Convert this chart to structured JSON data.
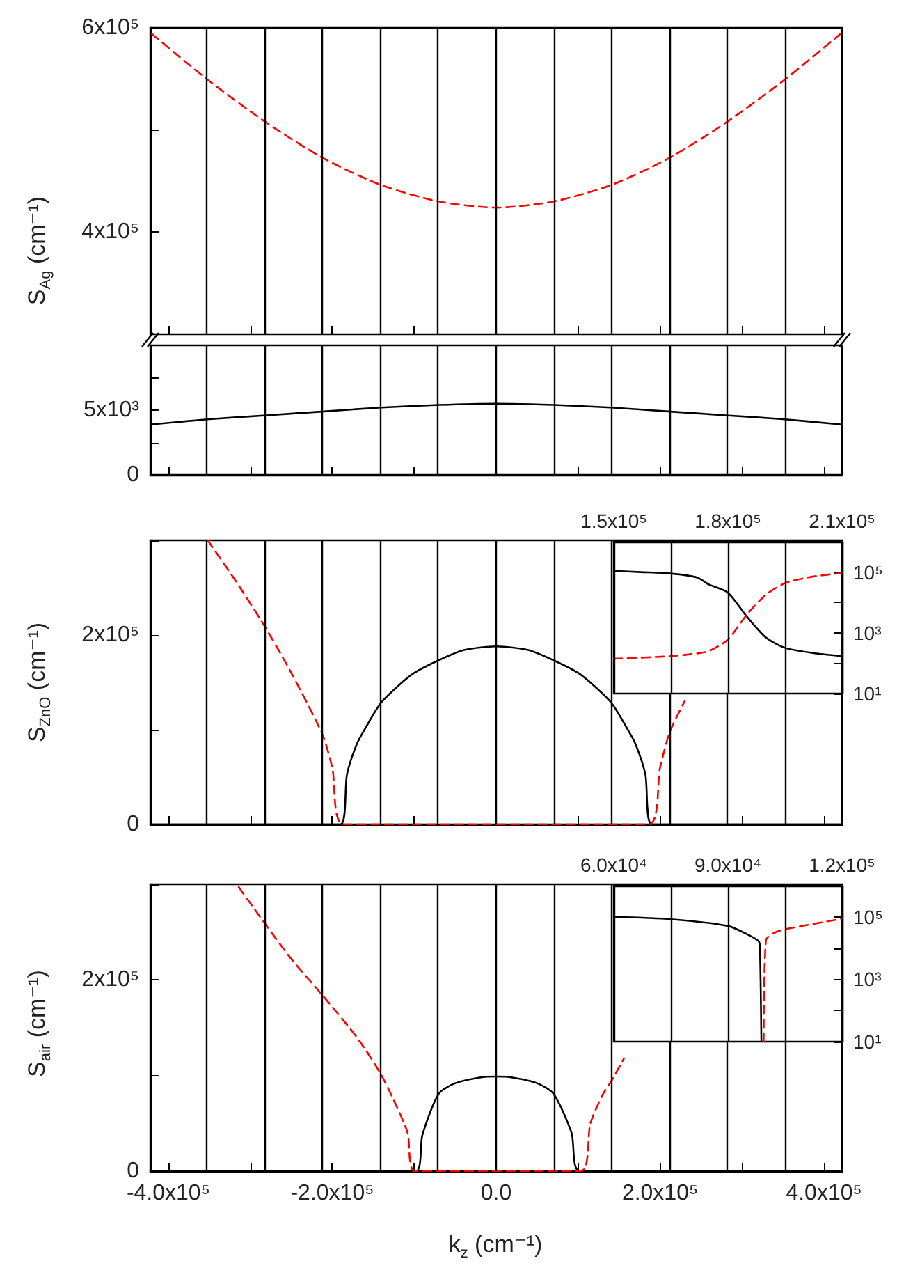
{
  "chart_data": [
    {
      "type": "line",
      "ylabel": "S$_{Ag}$ (cm⁻¹)",
      "xlim": [
        -422000,
        422000
      ],
      "ylim": [
        300000,
        600000
      ],
      "tick_labels": "y",
      "marker": "none",
      "xticks": [
        {
          "value": -400000,
          "label": null
        },
        {
          "value": -300000,
          "label": null
        },
        {
          "value": -200000,
          "label": null
        },
        {
          "value": -100000,
          "label": null
        },
        {
          "value": 0,
          "label": null
        },
        {
          "value": 100000,
          "label": null
        },
        {
          "value": 200000,
          "label": null
        },
        {
          "value": 300000,
          "label": null
        },
        {
          "value": 400000,
          "label": null
        }
      ],
      "yticks": [
        {
          "value": 400000,
          "label": "4x10⁵"
        },
        {
          "value": 500000,
          "label": null
        },
        {
          "value": 600000,
          "label": "6x10⁵"
        }
      ],
      "series": [
        {
          "color": "#ff0000",
          "line_style": "dashed",
          "x": [
            -420000,
            -350000,
            -280000,
            -210000,
            -140000,
            -70000,
            0,
            70000,
            140000,
            210000,
            280000,
            350000,
            420000
          ],
          "values": [
            594000,
            548000,
            507000,
            472000,
            446000,
            430000,
            424000,
            430000,
            446000,
            472000,
            507000,
            548000,
            594000
          ]
        }
      ],
      "ref_lines": [
        {
          "axis": "x",
          "value": -353000,
          "color": "#000000"
        },
        {
          "axis": "x",
          "value": -282000,
          "color": "#000000"
        },
        {
          "axis": "x",
          "value": -212000,
          "color": "#000000"
        },
        {
          "axis": "x",
          "value": -141000,
          "color": "#000000"
        },
        {
          "axis": "x",
          "value": -71000,
          "color": "#000000"
        },
        {
          "axis": "x",
          "value": 0,
          "color": "#000000"
        },
        {
          "axis": "x",
          "value": 71000,
          "color": "#000000"
        },
        {
          "axis": "x",
          "value": 141000,
          "color": "#000000"
        },
        {
          "axis": "x",
          "value": 212000,
          "color": "#000000"
        },
        {
          "axis": "x",
          "value": 282000,
          "color": "#000000"
        },
        {
          "axis": "x",
          "value": 353000,
          "color": "#000000"
        }
      ]
    },
    {
      "type": "line",
      "xlim": [
        -422000,
        422000
      ],
      "ylim": [
        0,
        10000
      ],
      "tick_labels": "y",
      "marker": "none",
      "xticks": [
        {
          "value": -400000,
          "label": null
        },
        {
          "value": -300000,
          "label": null
        },
        {
          "value": -200000,
          "label": null
        },
        {
          "value": -100000,
          "label": null
        },
        {
          "value": 0,
          "label": null
        },
        {
          "value": 100000,
          "label": null
        },
        {
          "value": 200000,
          "label": null
        },
        {
          "value": 300000,
          "label": null
        },
        {
          "value": 400000,
          "label": null
        }
      ],
      "yticks": [
        {
          "value": 0,
          "label": "0"
        },
        {
          "value": 2500,
          "label": null
        },
        {
          "value": 5000,
          "label": "5x10³"
        },
        {
          "value": 7500,
          "label": null
        }
      ],
      "series": [
        {
          "color": "#000000",
          "line_style": "solid",
          "x": [
            -420000,
            -350000,
            -280000,
            -210000,
            -140000,
            -70000,
            0,
            70000,
            140000,
            210000,
            280000,
            350000,
            420000
          ],
          "values": [
            3900,
            4300,
            4600,
            4900,
            5200,
            5400,
            5500,
            5400,
            5200,
            4900,
            4600,
            4300,
            3900
          ]
        }
      ],
      "ref_lines": [
        {
          "axis": "x",
          "value": -353000,
          "color": "#000000"
        },
        {
          "axis": "x",
          "value": -282000,
          "color": "#000000"
        },
        {
          "axis": "x",
          "value": -212000,
          "color": "#000000"
        },
        {
          "axis": "x",
          "value": -141000,
          "color": "#000000"
        },
        {
          "axis": "x",
          "value": -71000,
          "color": "#000000"
        },
        {
          "axis": "x",
          "value": 0,
          "color": "#000000"
        },
        {
          "axis": "x",
          "value": 71000,
          "color": "#000000"
        },
        {
          "axis": "x",
          "value": 141000,
          "color": "#000000"
        },
        {
          "axis": "x",
          "value": 212000,
          "color": "#000000"
        },
        {
          "axis": "x",
          "value": 282000,
          "color": "#000000"
        },
        {
          "axis": "x",
          "value": 353000,
          "color": "#000000"
        }
      ]
    },
    {
      "type": "line",
      "ylabel": "S$_{ZnO}$ (cm⁻¹)",
      "xlim": [
        -422000,
        422000
      ],
      "ylim": [
        0,
        300000
      ],
      "tick_labels": "y",
      "marker": "none",
      "xticks": [
        {
          "value": -400000,
          "label": null
        },
        {
          "value": -300000,
          "label": null
        },
        {
          "value": -200000,
          "label": null
        },
        {
          "value": -100000,
          "label": null
        },
        {
          "value": 0,
          "label": null
        },
        {
          "value": 100000,
          "label": null
        },
        {
          "value": 200000,
          "label": null
        },
        {
          "value": 300000,
          "label": null
        },
        {
          "value": 400000,
          "label": null
        }
      ],
      "yticks": [
        {
          "value": 0,
          "label": "0"
        },
        {
          "value": 100000,
          "label": null
        },
        {
          "value": 200000,
          "label": "2x10⁵"
        },
        {
          "value": 300000,
          "label": null
        }
      ],
      "series": [
        {
          "color": "#000000",
          "line_style": "solid",
          "x": [
            -422000,
            -190000,
            -182000,
            -170000,
            -160000,
            -141000,
            -120000,
            -100000,
            -71000,
            -40000,
            0,
            40000,
            71000,
            100000,
            120000,
            141000,
            160000,
            170000,
            182000,
            190000,
            422000
          ],
          "values": [
            0,
            0,
            53000,
            85000,
            101000,
            128000,
            146000,
            160000,
            173000,
            184000,
            188000,
            184000,
            173000,
            160000,
            146000,
            128000,
            101000,
            85000,
            53000,
            0,
            0
          ]
        },
        {
          "color": "#ff0000",
          "line_style": "dashed",
          "x": [
            -352000,
            -320000,
            -283000,
            -250000,
            -212000,
            -200000,
            -186000,
            186000,
            200000,
            212000,
            230000
          ],
          "values": [
            300000,
            260000,
            210000,
            160000,
            95000,
            60000,
            0,
            0,
            60000,
            98000,
            130000
          ]
        }
      ],
      "ref_lines": [
        {
          "axis": "x",
          "value": -353000,
          "color": "#000000"
        },
        {
          "axis": "x",
          "value": -282000,
          "color": "#000000"
        },
        {
          "axis": "x",
          "value": -212000,
          "color": "#000000"
        },
        {
          "axis": "x",
          "value": -141000,
          "color": "#000000"
        },
        {
          "axis": "x",
          "value": -71000,
          "color": "#000000"
        },
        {
          "axis": "x",
          "value": 0,
          "color": "#000000"
        },
        {
          "axis": "x",
          "value": 71000,
          "color": "#000000"
        },
        {
          "axis": "x",
          "value": 141000,
          "color": "#000000"
        },
        {
          "axis": "x",
          "value": 212000,
          "color": "#000000"
        },
        {
          "axis": "x",
          "value": 282000,
          "color": "#000000"
        },
        {
          "axis": "x",
          "value": 353000,
          "color": "#000000"
        }
      ]
    },
    {
      "type": "line",
      "xlim": [
        150000,
        210000
      ],
      "ylim": [
        10,
        1000000
      ],
      "log": "y",
      "grid": "x",
      "marker": "none",
      "xticks": [
        {
          "value": 150000,
          "label": "1.5x10⁵"
        },
        {
          "value": 165000,
          "label": null
        },
        {
          "value": 180000,
          "label": "1.8x10⁵"
        },
        {
          "value": 195000,
          "label": null
        },
        {
          "value": 210000,
          "label": "2.1x10⁵"
        }
      ],
      "yticks": [
        {
          "value": 10,
          "label": "10¹"
        },
        {
          "value": 100,
          "label": null
        },
        {
          "value": 1000,
          "label": "10³"
        },
        {
          "value": 10000,
          "label": null
        },
        {
          "value": 100000,
          "label": "10⁵"
        },
        {
          "value": 1000000,
          "label": null
        }
      ],
      "series": [
        {
          "color": "#000000",
          "line_style": "solid",
          "x": [
            150000,
            157000,
            165000,
            172000,
            175000,
            180000,
            185000,
            190000,
            195000,
            202000,
            210000
          ],
          "values": [
            110000,
            100000,
            90000,
            66000,
            39000,
            21000,
            3400,
            700,
            320,
            220,
            170
          ]
        },
        {
          "color": "#ff0000",
          "line_style": "dashed",
          "x": [
            150000,
            165000,
            172000,
            175000,
            180000,
            185000,
            190000,
            195000,
            202000,
            210000
          ],
          "values": [
            140,
            170,
            210,
            250,
            600,
            4000,
            18000,
            43000,
            70000,
            93000
          ]
        }
      ]
    },
    {
      "type": "line",
      "ylabel": "S$_{air}$ (cm⁻¹)",
      "xlabel": "k$_{z}$ (cm⁻¹)",
      "xlim": [
        -422000,
        422000
      ],
      "ylim": [
        0,
        300000
      ],
      "marker": "none",
      "xticks": [
        {
          "value": -400000,
          "label": "-4.0x10⁵"
        },
        {
          "value": -300000,
          "label": null
        },
        {
          "value": -200000,
          "label": "-2.0x10⁵"
        },
        {
          "value": -100000,
          "label": null
        },
        {
          "value": 0,
          "label": "0.0"
        },
        {
          "value": 100000,
          "label": null
        },
        {
          "value": 200000,
          "label": "2.0x10⁵"
        },
        {
          "value": 300000,
          "label": null
        },
        {
          "value": 400000,
          "label": "4.0x10⁵"
        }
      ],
      "yticks": [
        {
          "value": 0,
          "label": "0"
        },
        {
          "value": 100000,
          "label": null
        },
        {
          "value": 200000,
          "label": "2x10⁵"
        },
        {
          "value": 300000,
          "label": null
        }
      ],
      "series": [
        {
          "color": "#000000",
          "line_style": "solid",
          "x": [
            -422000,
            -98000,
            -90000,
            -70000,
            -50000,
            -20000,
            0,
            20000,
            50000,
            70000,
            92000,
            102000,
            422000
          ],
          "values": [
            0,
            0,
            38000,
            81000,
            92000,
            98000,
            99000,
            98000,
            92000,
            81000,
            40000,
            0,
            0
          ]
        },
        {
          "color": "#ff0000",
          "line_style": "dashed",
          "x": [
            -314000,
            -283000,
            -250000,
            -212000,
            -170000,
            -141000,
            -120000,
            -108000,
            -99000,
            103000,
            115000,
            130000,
            141000,
            156000
          ],
          "values": [
            297000,
            260000,
            222000,
            184000,
            140000,
            102000,
            65000,
            40000,
            0,
            0,
            50000,
            80000,
            95000,
            118000
          ]
        }
      ],
      "ref_lines": [
        {
          "axis": "x",
          "value": -353000,
          "color": "#000000"
        },
        {
          "axis": "x",
          "value": -282000,
          "color": "#000000"
        },
        {
          "axis": "x",
          "value": -212000,
          "color": "#000000"
        },
        {
          "axis": "x",
          "value": -141000,
          "color": "#000000"
        },
        {
          "axis": "x",
          "value": -71000,
          "color": "#000000"
        },
        {
          "axis": "x",
          "value": 0,
          "color": "#000000"
        },
        {
          "axis": "x",
          "value": 71000,
          "color": "#000000"
        },
        {
          "axis": "x",
          "value": 141000,
          "color": "#000000"
        },
        {
          "axis": "x",
          "value": 212000,
          "color": "#000000"
        },
        {
          "axis": "x",
          "value": 282000,
          "color": "#000000"
        },
        {
          "axis": "x",
          "value": 353000,
          "color": "#000000"
        }
      ]
    },
    {
      "type": "line",
      "xlim": [
        60000,
        120000
      ],
      "ylim": [
        10,
        1000000
      ],
      "log": "y",
      "grid": "x",
      "marker": "none",
      "xticks": [
        {
          "value": 60000,
          "label": "6.0x10⁴"
        },
        {
          "value": 75000,
          "label": null
        },
        {
          "value": 90000,
          "label": "9.0x10⁴"
        },
        {
          "value": 105000,
          "label": null
        },
        {
          "value": 120000,
          "label": "1.2x10⁵"
        }
      ],
      "yticks": [
        {
          "value": 10,
          "label": "10¹"
        },
        {
          "value": 100,
          "label": null
        },
        {
          "value": 1000,
          "label": "10³"
        },
        {
          "value": 10000,
          "label": null
        },
        {
          "value": 100000,
          "label": "10⁵"
        },
        {
          "value": 1000000,
          "label": null
        }
      ],
      "series": [
        {
          "color": "#000000",
          "line_style": "solid",
          "x": [
            60000,
            75000,
            90000,
            95000,
            98000,
            98400,
            98800
          ],
          "values": [
            100000,
            84000,
            51000,
            28000,
            17000,
            12000,
            10
          ]
        },
        {
          "color": "#ff0000",
          "line_style": "dashed",
          "x": [
            99400,
            100000,
            102000,
            105000,
            120000
          ],
          "values": [
            10,
            18000,
            30000,
            40000,
            87000
          ]
        }
      ]
    }
  ]
}
